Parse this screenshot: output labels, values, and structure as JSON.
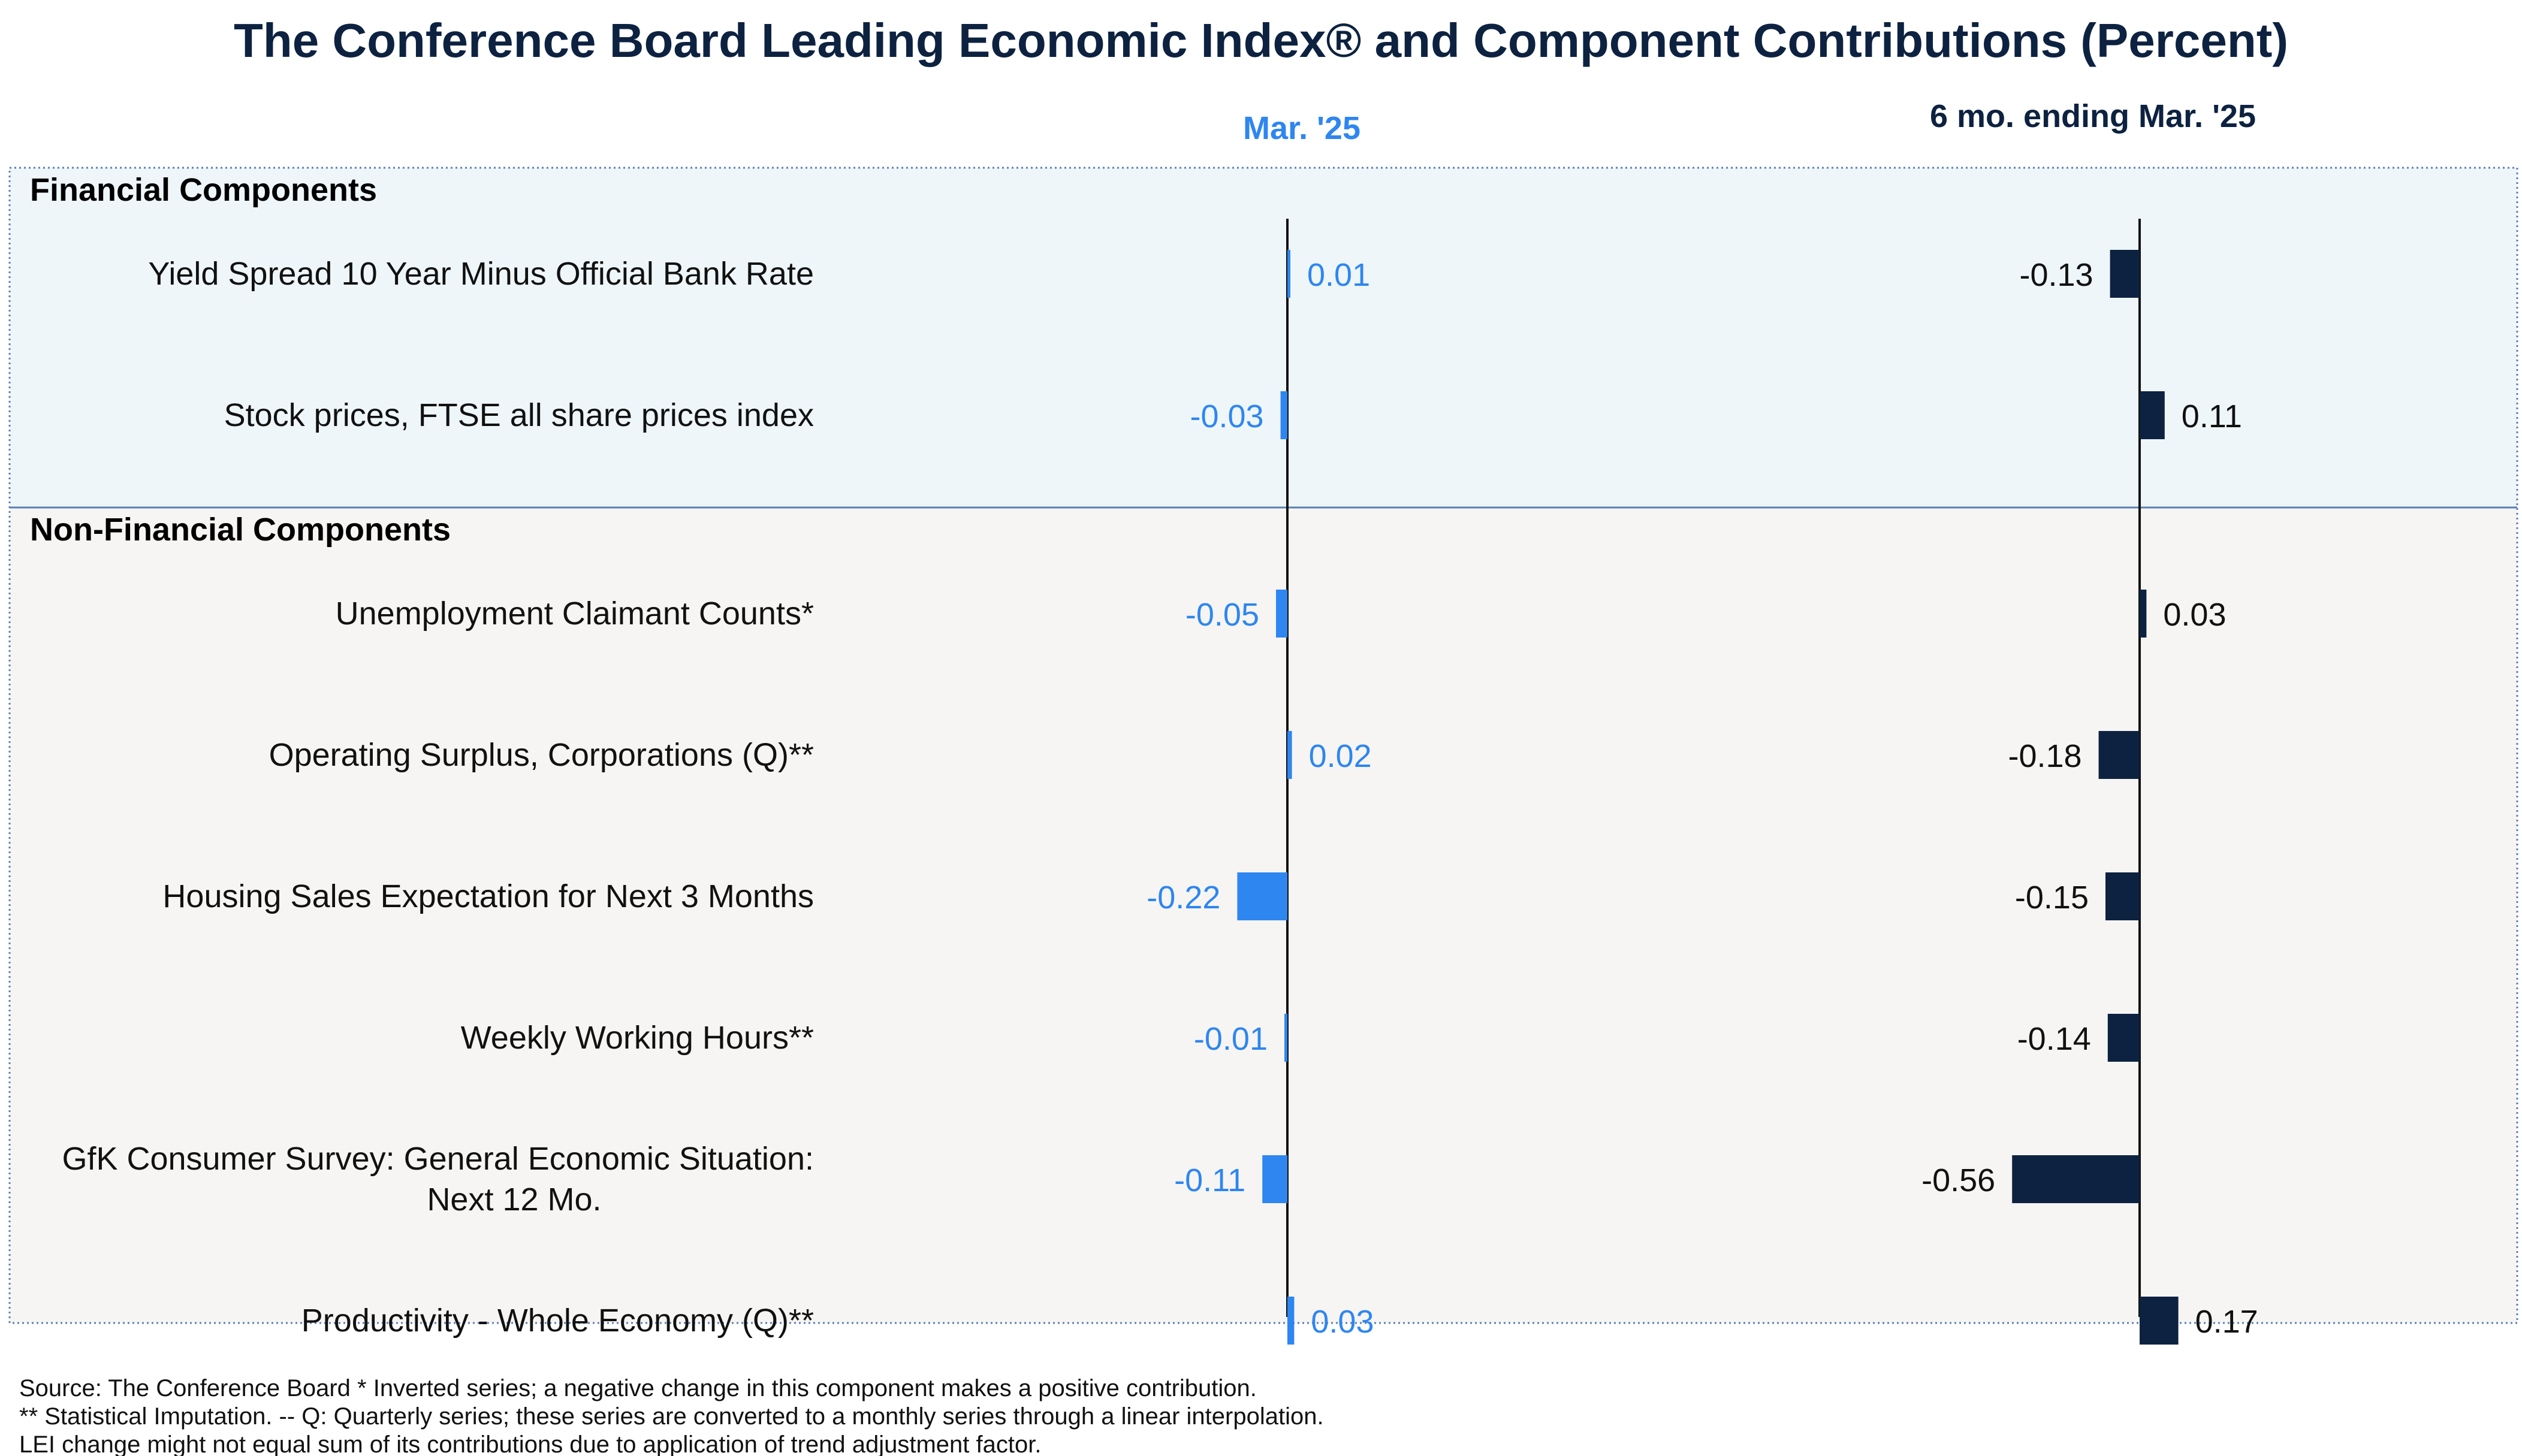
{
  "title": "The Conference Board Leading Economic Index® and Component Contributions (Percent)",
  "colors": {
    "title": "#0d2240",
    "monthly": "#2e86f0",
    "six_month": "#0d2240",
    "financial_bg": "#eef6f9",
    "nonfinancial_bg": "#f6f5f3",
    "border": "#5b7fb5"
  },
  "chart_data": {
    "type": "bar",
    "orientation": "horizontal",
    "columns": [
      "Mar. '25",
      "6 mo. ending Mar. '25"
    ],
    "groups": [
      {
        "name": "Financial Components",
        "items": [
          {
            "label": "Yield Spread 10 Year Minus Official Bank Rate",
            "monthly": 0.01,
            "six_month": -0.13
          },
          {
            "label": "Stock prices, FTSE all share prices index",
            "monthly": -0.03,
            "six_month": 0.11
          }
        ]
      },
      {
        "name": "Non-Financial Components",
        "items": [
          {
            "label": "Unemployment Claimant Counts*",
            "monthly": -0.05,
            "six_month": 0.03
          },
          {
            "label": "Operating Surplus, Corporations (Q)**",
            "monthly": 0.02,
            "six_month": -0.18
          },
          {
            "label": "Housing Sales Expectation for Next 3 Months",
            "monthly": -0.22,
            "six_month": -0.15
          },
          {
            "label": "Weekly Working Hours**",
            "monthly": -0.01,
            "six_month": -0.14
          },
          {
            "label": [
              "GfK Consumer Survey: General Economic Situation:",
              "Next 12 Mo."
            ],
            "monthly": -0.11,
            "six_month": -0.56
          },
          {
            "label": "Productivity - Whole Economy (Q)**",
            "monthly": 0.03,
            "six_month": 0.17
          }
        ]
      }
    ]
  },
  "footnotes": [
    "Source: The Conference Board *  Inverted series; a negative change in this component makes a positive contribution.",
    "**  Statistical Imputation. -- Q: Quarterly series; these series are converted to a monthly series through a linear interpolation.",
    "LEI change might not equal sum of its contributions due to application of trend adjustment factor."
  ]
}
